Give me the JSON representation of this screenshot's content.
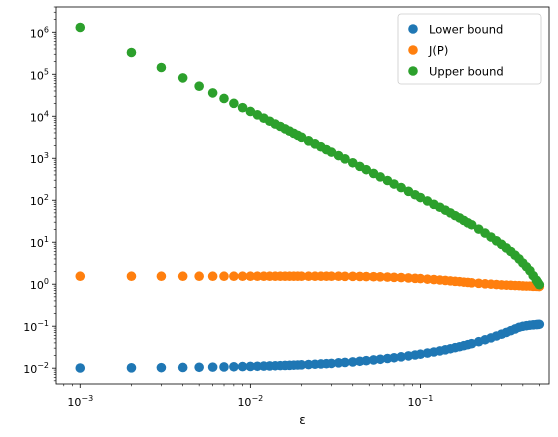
{
  "chart_data": {
    "type": "scatter",
    "title": "",
    "xlabel": "ε",
    "ylabel": "",
    "xscale": "log",
    "yscale": "log",
    "xlim": [
      0.00072,
      0.57
    ],
    "ylim": [
      0.0042,
      4000000
    ],
    "grid": false,
    "legend_position": "top-right",
    "x_ticks": [
      {
        "value": 0.001,
        "base": "10",
        "exp": "−3"
      },
      {
        "value": 0.01,
        "base": "10",
        "exp": "−2"
      },
      {
        "value": 0.1,
        "base": "10",
        "exp": "−1"
      }
    ],
    "y_ticks": [
      {
        "value": 0.01,
        "base": "10",
        "exp": "−2"
      },
      {
        "value": 0.1,
        "base": "10",
        "exp": "−1"
      },
      {
        "value": 1,
        "base": "10",
        "exp": "0"
      },
      {
        "value": 10,
        "base": "10",
        "exp": "1"
      },
      {
        "value": 100,
        "base": "10",
        "exp": "2"
      },
      {
        "value": 1000,
        "base": "10",
        "exp": "3"
      },
      {
        "value": 10000,
        "base": "10",
        "exp": "4"
      },
      {
        "value": 100000,
        "base": "10",
        "exp": "5"
      },
      {
        "value": 1000000,
        "base": "10",
        "exp": "6"
      }
    ],
    "x": [
      0.001,
      0.002,
      0.003,
      0.004,
      0.005,
      0.006,
      0.007,
      0.008,
      0.009,
      0.01,
      0.011,
      0.012,
      0.013,
      0.014,
      0.015,
      0.016,
      0.017,
      0.018,
      0.019,
      0.02,
      0.022,
      0.024,
      0.026,
      0.028,
      0.03,
      0.033,
      0.036,
      0.04,
      0.044,
      0.048,
      0.053,
      0.058,
      0.064,
      0.07,
      0.077,
      0.085,
      0.093,
      0.1,
      0.11,
      0.12,
      0.13,
      0.14,
      0.15,
      0.16,
      0.17,
      0.18,
      0.19,
      0.2,
      0.22,
      0.24,
      0.26,
      0.28,
      0.3,
      0.32,
      0.34,
      0.36,
      0.38,
      0.4,
      0.42,
      0.44,
      0.46,
      0.48,
      0.49,
      0.5
    ],
    "series": [
      {
        "name": "Lower bound",
        "color": "#1f77b4",
        "values": [
          0.0101,
          0.0102,
          0.0103,
          0.0104,
          0.0105,
          0.0106,
          0.0107,
          0.0108,
          0.0109,
          0.011,
          0.0111,
          0.0112,
          0.0113,
          0.0114,
          0.0115,
          0.0116,
          0.0117,
          0.0118,
          0.0119,
          0.012,
          0.0122,
          0.0124,
          0.0126,
          0.0128,
          0.013,
          0.0134,
          0.0137,
          0.0141,
          0.0146,
          0.0151,
          0.0157,
          0.0163,
          0.017,
          0.0177,
          0.0186,
          0.0196,
          0.0206,
          0.0215,
          0.0229,
          0.0243,
          0.0258,
          0.0274,
          0.029,
          0.0307,
          0.0324,
          0.0343,
          0.0362,
          0.0383,
          0.0427,
          0.0475,
          0.0527,
          0.0584,
          0.0645,
          0.0712,
          0.0783,
          0.086,
          0.0943,
          0.0995,
          0.1027,
          0.1055,
          0.1078,
          0.1095,
          0.1102,
          0.111
        ]
      },
      {
        "name": "J(P)",
        "color": "#ff7f0e",
        "values": [
          1.55,
          1.55,
          1.55,
          1.55,
          1.55,
          1.55,
          1.55,
          1.55,
          1.55,
          1.55,
          1.55,
          1.55,
          1.55,
          1.55,
          1.55,
          1.55,
          1.55,
          1.55,
          1.55,
          1.55,
          1.55,
          1.55,
          1.55,
          1.55,
          1.55,
          1.55,
          1.54,
          1.54,
          1.53,
          1.52,
          1.51,
          1.5,
          1.48,
          1.46,
          1.44,
          1.41,
          1.38,
          1.36,
          1.32,
          1.29,
          1.26,
          1.23,
          1.2,
          1.17,
          1.15,
          1.12,
          1.1,
          1.08,
          1.05,
          1.02,
          1.0,
          0.98,
          0.96,
          0.95,
          0.94,
          0.93,
          0.92,
          0.91,
          0.9,
          0.9,
          0.89,
          0.89,
          0.89,
          0.88
        ]
      },
      {
        "name": "Upper bound",
        "color": "#2ca02c",
        "values": [
          1300000,
          330000,
          145000,
          82000,
          52000,
          36000,
          26500,
          20300,
          16000,
          13000,
          10800,
          9000,
          7600,
          6500,
          5700,
          5000,
          4400,
          3900,
          3500,
          3150,
          2600,
          2200,
          1880,
          1610,
          1400,
          1160,
          970,
          780,
          640,
          535,
          435,
          360,
          295,
          243,
          200,
          163,
          135,
          116,
          96,
          80,
          68,
          58,
          50,
          43,
          38,
          33,
          29,
          26,
          20.5,
          16.5,
          13.3,
          10.8,
          8.9,
          7.3,
          6.0,
          4.9,
          4.0,
          3.2,
          2.6,
          2.1,
          1.6,
          1.25,
          1.1,
          0.97
        ]
      }
    ]
  }
}
